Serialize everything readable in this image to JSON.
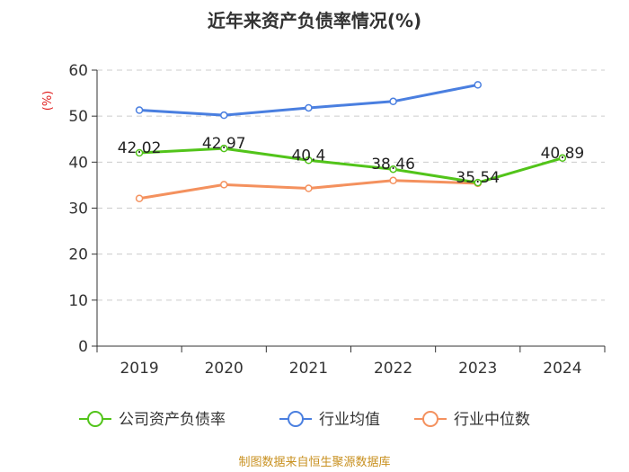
{
  "chart_data": {
    "type": "line",
    "title": "近年来资产负债率情况(%)",
    "ylabel": "(%)",
    "x": [
      "2019",
      "2020",
      "2021",
      "2022",
      "2023",
      "2024"
    ],
    "ylim": [
      0,
      60
    ],
    "yticks": [
      0,
      10,
      20,
      30,
      40,
      50,
      60
    ],
    "grid": true,
    "legend_position": "bottom",
    "series": [
      {
        "name": "公司资产负债率",
        "color": "#52c41a",
        "values": [
          42.02,
          42.97,
          40.4,
          38.46,
          35.54,
          40.89
        ],
        "labels": [
          "42.02",
          "42.97",
          "40.4",
          "38.46",
          "35.54",
          "40.89"
        ],
        "show_labels": true
      },
      {
        "name": "行业均值",
        "color": "#4a7fe0",
        "values": [
          51.3,
          50.2,
          51.8,
          53.2,
          56.8,
          null
        ],
        "show_labels": false
      },
      {
        "name": "行业中位数",
        "color": "#f4915e",
        "values": [
          32.1,
          35.1,
          34.3,
          36.0,
          35.4,
          null
        ],
        "show_labels": false
      }
    ]
  },
  "source_note": "制图数据来自恒生聚源数据库"
}
